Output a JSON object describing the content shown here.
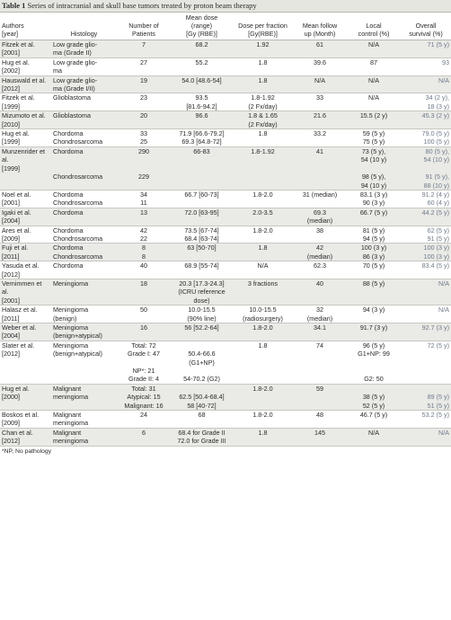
{
  "caption": {
    "label": "Table 1",
    "text": "Series of intracranial and skull base tumors treated by proton beam therapy"
  },
  "headers": [
    "Authors\n[year]",
    "Histology",
    "Number of\nPatients",
    "Mean dose\n(range)\n[Gy (RBE)]",
    "Dose per fraction\n[Gy(RBE)]",
    "Mean follow\nup (Month)",
    "Local\ncontrol (%)",
    "Overall\nsurvival (%)"
  ],
  "groups": [
    {
      "band": true,
      "rows": [
        [
          "Fitzek et al.\n[2001]",
          "Low grade glio-\nma (Grade II)",
          "7",
          "68.2",
          "1.92",
          "61",
          "N/A",
          "71 (5 y)"
        ]
      ]
    },
    {
      "band": false,
      "rows": [
        [
          "Hug et al.\n[2002]",
          "Low grade glio-\nma",
          "27",
          "55.2",
          "1.8",
          "39.6",
          "87",
          "93"
        ]
      ]
    },
    {
      "band": true,
      "rows": [
        [
          "Hauswald et al.\n[2012]",
          "Low grade glio-\nma (Grade I/II)",
          "19",
          "54.0 [48.6-54]",
          "1.8",
          "N/A",
          "N/A",
          "N/A"
        ]
      ]
    },
    {
      "band": false,
      "rows": [
        [
          "Fitzek et al.\n[1999]",
          "Glioblastoma",
          "23",
          "93.5\n[81.6-94.2]",
          "1.8-1.92\n(2 Fx/day)",
          "33",
          "N/A",
          "34 (2 y),\n18 (3 y)"
        ]
      ]
    },
    {
      "band": true,
      "rows": [
        [
          "Mizumoto et al.\n[2010]",
          "Glioblastoma",
          "20",
          "96.6",
          "1.8 & 1.65\n(2 Fx/day)",
          "21.6",
          "15.5 (2 y)",
          "45.3 (2 y)"
        ]
      ]
    },
    {
      "band": false,
      "rows": [
        [
          "Hug et al.\n[1999]",
          "Chordoma\nChondrosarcoma",
          "33\n25",
          "71.9 [66.6-79.2]\n69.3 [64.8-72]",
          "1.8",
          "33.2",
          "59 (5 y)\n75 (5 y)",
          "79.0 (5 y)\n100 (5 y)"
        ]
      ]
    },
    {
      "band": true,
      "rows": [
        [
          "Munzenrider et al.\n[1999]",
          "Chordoma",
          "290",
          "66-83",
          "1.8-1.92",
          "41",
          "73 (5 y),\n54 (10 y)",
          "80 (5 y),\n54 (10 y)"
        ],
        [
          "",
          "Chondrosarcoma",
          "229",
          "",
          "",
          "",
          "98 (5 y),\n94 (10 y)",
          "91 (5 y),\n88 (10 y)"
        ]
      ]
    },
    {
      "band": false,
      "rows": [
        [
          "Noel et al.\n[2001]",
          "Chordoma\nChondrosarcoma",
          "34\n11",
          "66.7 [60-73]",
          "1.8-2.0",
          "31 (median)",
          "83.1 (3 y)\n90 (3 y)",
          "91.2 (4 y)\n60 (4 y)"
        ]
      ]
    },
    {
      "band": true,
      "rows": [
        [
          "Igaki et al.\n[2004]",
          "Chordoma",
          "13",
          "72.0 [63-95]",
          "2.0-3.5",
          "69.3\n(median)",
          "66.7 (5 y)",
          "44.2 (5 y)"
        ]
      ]
    },
    {
      "band": false,
      "rows": [
        [
          "Ares et al.\n[2009]",
          "Chordoma\nChondrosarcoma",
          "42\n22",
          "73.5 [67-74]\n68.4 [63-74]",
          "1.8-2.0",
          "38",
          "81 (5 y)\n94 (5 y)",
          "62 (5 y)\n91 (5 y)"
        ]
      ]
    },
    {
      "band": true,
      "rows": [
        [
          "Fuji et al.\n[2011]",
          "Chordoma\nChondrosarcoma",
          "8\n8",
          "63 [50-70]",
          "1.8",
          "42\n(median)",
          "100 (3 y)\n86 (3 y)",
          "100 (3 y)\n100 (3 y)"
        ]
      ]
    },
    {
      "band": false,
      "rows": [
        [
          "Yasuda et al.\n[2012]",
          "Chordoma",
          "40",
          "68.9 [55-74]",
          "N/A",
          "62.3",
          "70 (5 y)",
          "83.4 (5 y)"
        ]
      ]
    },
    {
      "band": true,
      "rows": [
        [
          "Vernimmen et al.\n[2001]",
          "Meningioma",
          "18",
          "20.3 [17.3-24.3]\n(ICRU reference\ndose)",
          "3 fractions",
          "40",
          "88 (5 y)",
          "N/A"
        ]
      ]
    },
    {
      "band": false,
      "rows": [
        [
          "Halasz et al.\n[2011]",
          "Meningioma\n(benign)",
          "50",
          "10.0-15.5\n(90% line)",
          "10.0-15.5\n(radiosurgery)",
          "32\n(median)",
          "94 (3 y)",
          "N/A"
        ]
      ]
    },
    {
      "band": true,
      "rows": [
        [
          "Weber et al.\n[2004]",
          "Meningioma\n(benign+atypical)",
          "16",
          "56 [52.2-64]",
          "1.8-2.0",
          "34.1",
          "91.7 (3 y)",
          "92.7 (3 y)"
        ]
      ]
    },
    {
      "band": false,
      "rows": [
        [
          "Slater et al.\n[2012]",
          "Meningioma\n(benign+atypical)",
          "Total: 72\nGrade I: 47\n\nNP*: 21\nGrade II: 4",
          "\n50.4-66.6\n(G1+NP)\n\n54-70.2 (G2)",
          "1.8",
          "74",
          "96 (5 y)\nG1+NP: 99\n\n\nG2: 50",
          "72 (5 y)"
        ]
      ]
    },
    {
      "band": true,
      "rows": [
        [
          "Hug et al.\n[2000]",
          "Malignant\nmeningioma",
          "Total: 31\nAtypical: 15\nMalignant: 16",
          "\n62.5 [50.4-68.4]\n58 [40-72]",
          "1.8-2.0",
          "59",
          "\n38 (5 y)\n52 (5 y)",
          "\n89 (5 y)\n51 (5 y)"
        ]
      ]
    },
    {
      "band": false,
      "rows": [
        [
          "Boskos et al.\n[2009]",
          "Malignant\nmeningioma",
          "24",
          "68",
          "1.8-2.0",
          "48",
          "46.7 (5 y)",
          "53.2 (5 y)"
        ]
      ]
    },
    {
      "band": true,
      "rows": [
        [
          "Chan et al.\n[2012]",
          "Malignant\nmeningioma",
          "6",
          "68.4 for Grade II\n72.0 for Grade III",
          "1.8",
          "145",
          "N/A",
          "N/A"
        ]
      ]
    }
  ],
  "footnote": "*NP, No pathology"
}
